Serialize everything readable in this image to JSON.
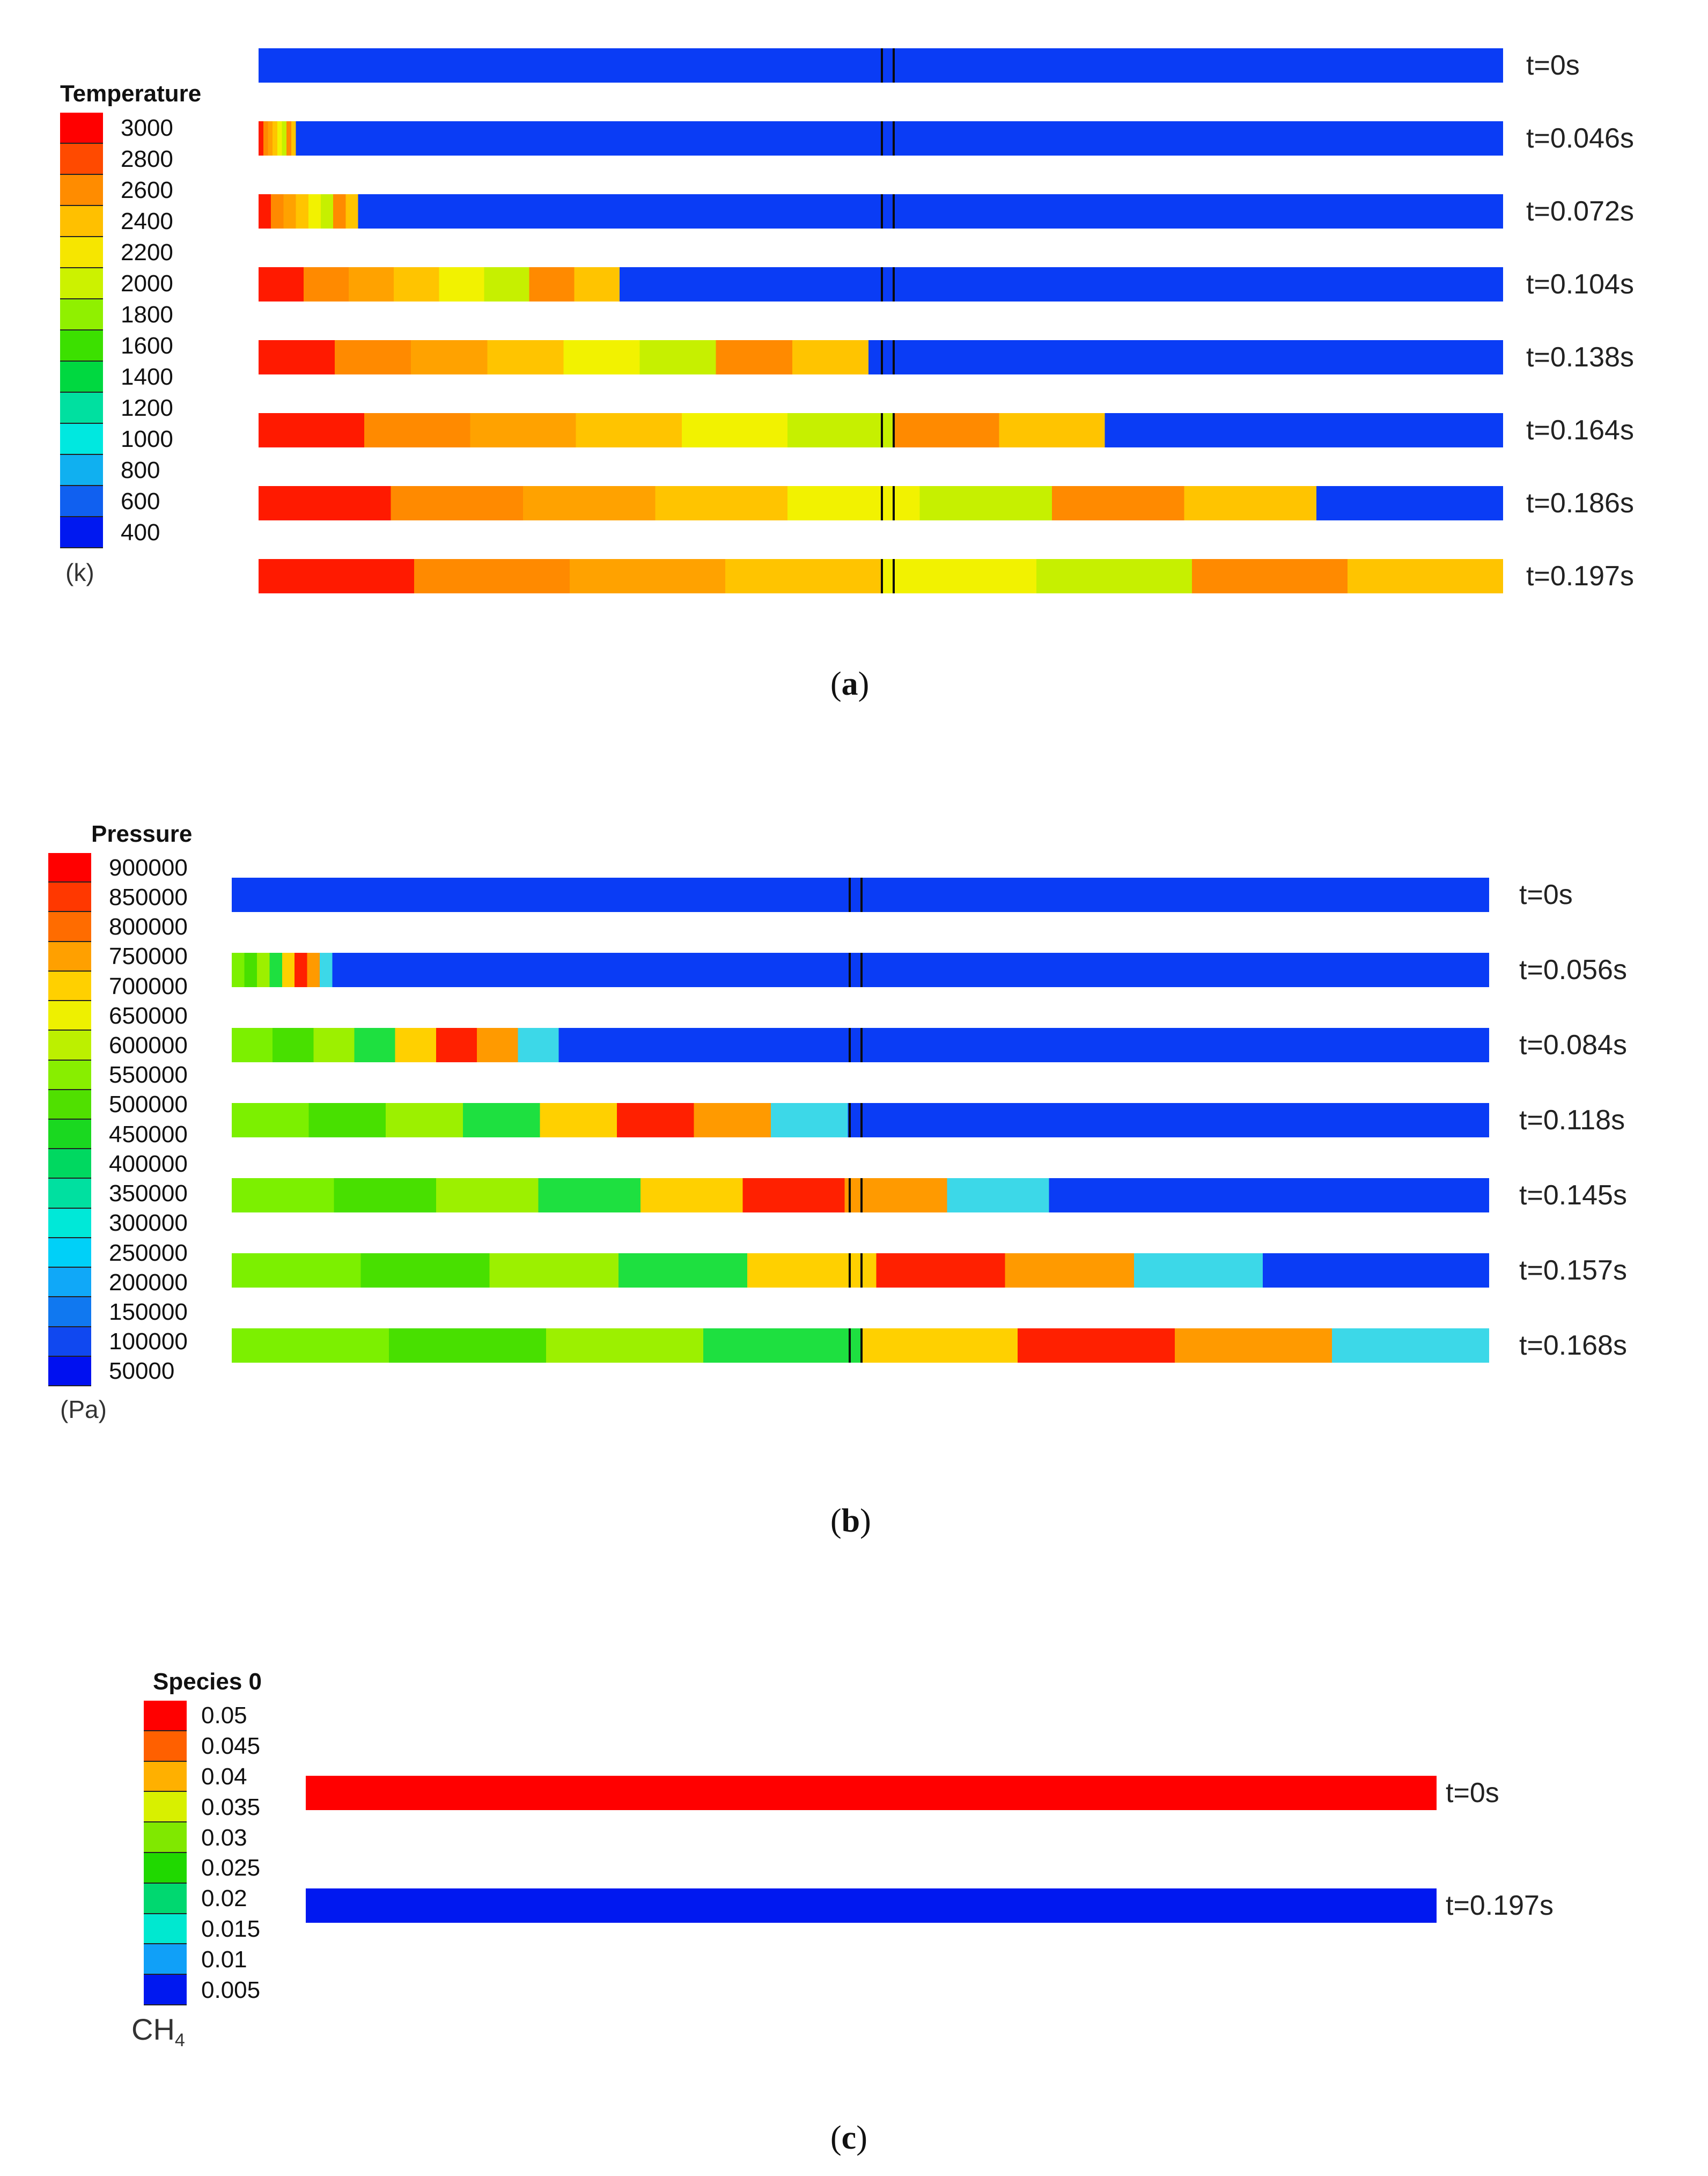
{
  "panel_a": {
    "legend": {
      "title": "Temperature",
      "unit": "(k)",
      "labels": [
        "3000",
        "2800",
        "2600",
        "2400",
        "2200",
        "2000",
        "1800",
        "1600",
        "1400",
        "1200",
        "1000",
        "800",
        "600",
        "400"
      ],
      "colors": [
        "#ff0000",
        "#ff4a00",
        "#ff8c00",
        "#ffc000",
        "#f6e600",
        "#ccf200",
        "#90f000",
        "#3ce000",
        "#00d840",
        "#00e0a0",
        "#00e8e0",
        "#10b0f0",
        "#1060f0",
        "#0018f0"
      ]
    },
    "rows": [
      {
        "label": "t=0s",
        "front": 0
      },
      {
        "label": "t=0.046s",
        "front": 0.03
      },
      {
        "label": "t=0.072s",
        "front": 0.08
      },
      {
        "label": "t=0.104s",
        "front": 0.29
      },
      {
        "label": "t=0.138s",
        "front": 0.49
      },
      {
        "label": "t=0.164s",
        "front": 0.68
      },
      {
        "label": "t=0.186s",
        "front": 0.85
      },
      {
        "label": "t=0.197s",
        "front": 1.0
      }
    ],
    "caption": "a"
  },
  "panel_b": {
    "legend": {
      "title": "Pressure",
      "unit": "(Pa)",
      "labels": [
        "900000",
        "850000",
        "800000",
        "750000",
        "700000",
        "650000",
        "600000",
        "550000",
        "500000",
        "450000",
        "400000",
        "350000",
        "300000",
        "250000",
        "200000",
        "150000",
        "100000",
        "50000"
      ],
      "colors": [
        "#ff0000",
        "#ff3800",
        "#ff6c00",
        "#ffa000",
        "#ffd000",
        "#eef000",
        "#bcf000",
        "#88ee00",
        "#50e000",
        "#1ad820",
        "#00d860",
        "#00e0a0",
        "#00e8d8",
        "#00d0f8",
        "#10a8f8",
        "#1078f0",
        "#1048f0",
        "#0010f0"
      ]
    },
    "rows": [
      {
        "label": "t=0s",
        "front": 0
      },
      {
        "label": "t=0.056s",
        "front": 0.08
      },
      {
        "label": "t=0.084s",
        "front": 0.26
      },
      {
        "label": "t=0.118s",
        "front": 0.49
      },
      {
        "label": "t=0.145s",
        "front": 0.65
      },
      {
        "label": "t=0.157s",
        "front": 0.82
      },
      {
        "label": "t=0.168s",
        "front": 1.0
      }
    ],
    "caption": "b"
  },
  "panel_c": {
    "legend": {
      "title": "Species 0",
      "unit_main": "CH",
      "unit_sub": "4",
      "labels": [
        "0.05",
        "0.045",
        "0.04",
        "0.035",
        "0.03",
        "0.025",
        "0.02",
        "0.015",
        "0.01",
        "0.005"
      ],
      "colors": [
        "#ff0000",
        "#ff6000",
        "#ffb000",
        "#d8f000",
        "#80e800",
        "#20d800",
        "#00d870",
        "#00e8d0",
        "#10a0f8",
        "#0018f0"
      ]
    },
    "rows": [
      {
        "label": "t=0s",
        "color": "#ff0000"
      },
      {
        "label": "t=0.197s",
        "color": "#0018f0"
      }
    ],
    "caption": "c"
  }
}
